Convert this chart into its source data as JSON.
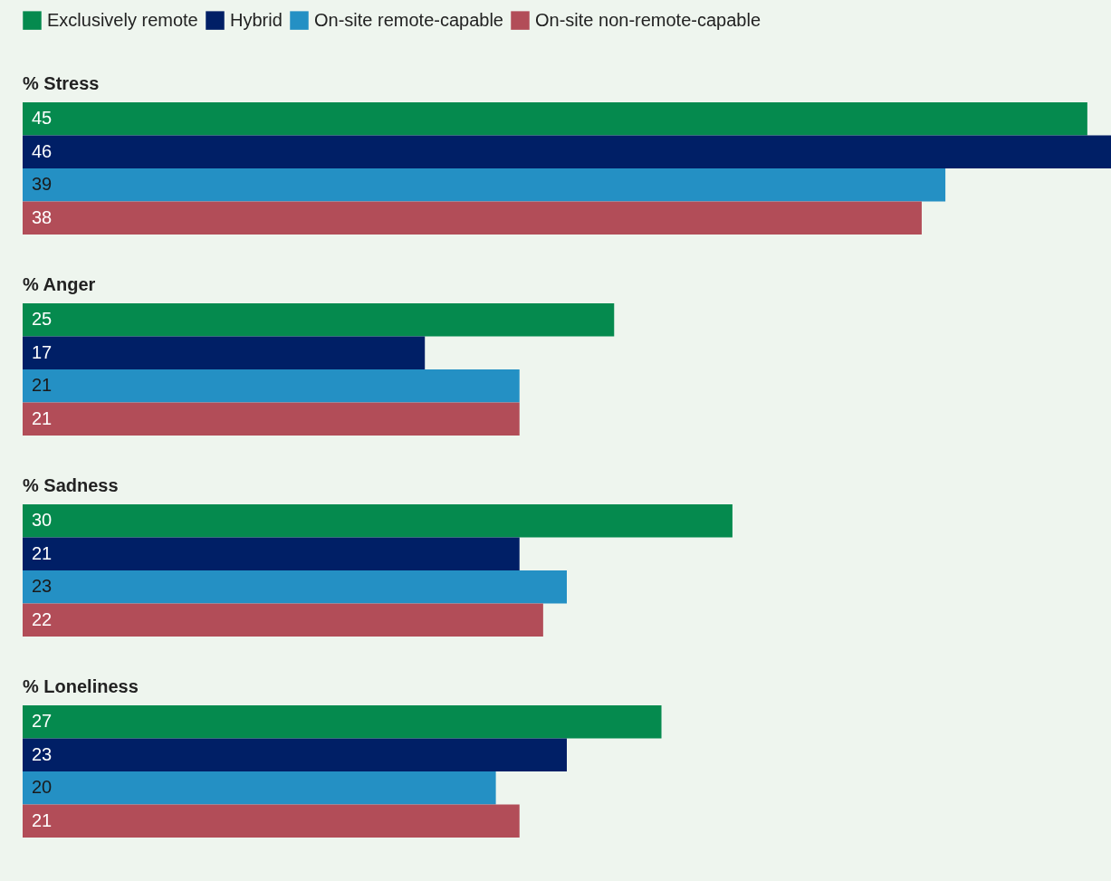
{
  "chart_data": {
    "type": "bar",
    "orientation": "horizontal",
    "data_labels": true,
    "legend": "top left",
    "categories": [
      "% Stress",
      "% Anger",
      "% Sadness",
      "% Loneliness"
    ],
    "series": [
      {
        "name": "Exclusively remote",
        "color": "#058a4e",
        "values": [
          45,
          25,
          30,
          27
        ]
      },
      {
        "name": "Hybrid",
        "color": "#001f66",
        "values": [
          46,
          17,
          21,
          23
        ]
      },
      {
        "name": "On-site remote-capable",
        "color": "#2490c4",
        "values": [
          39,
          21,
          23,
          20
        ]
      },
      {
        "name": "On-site non-remote-capable",
        "color": "#b24d58",
        "values": [
          38,
          21,
          22,
          21
        ]
      }
    ]
  }
}
